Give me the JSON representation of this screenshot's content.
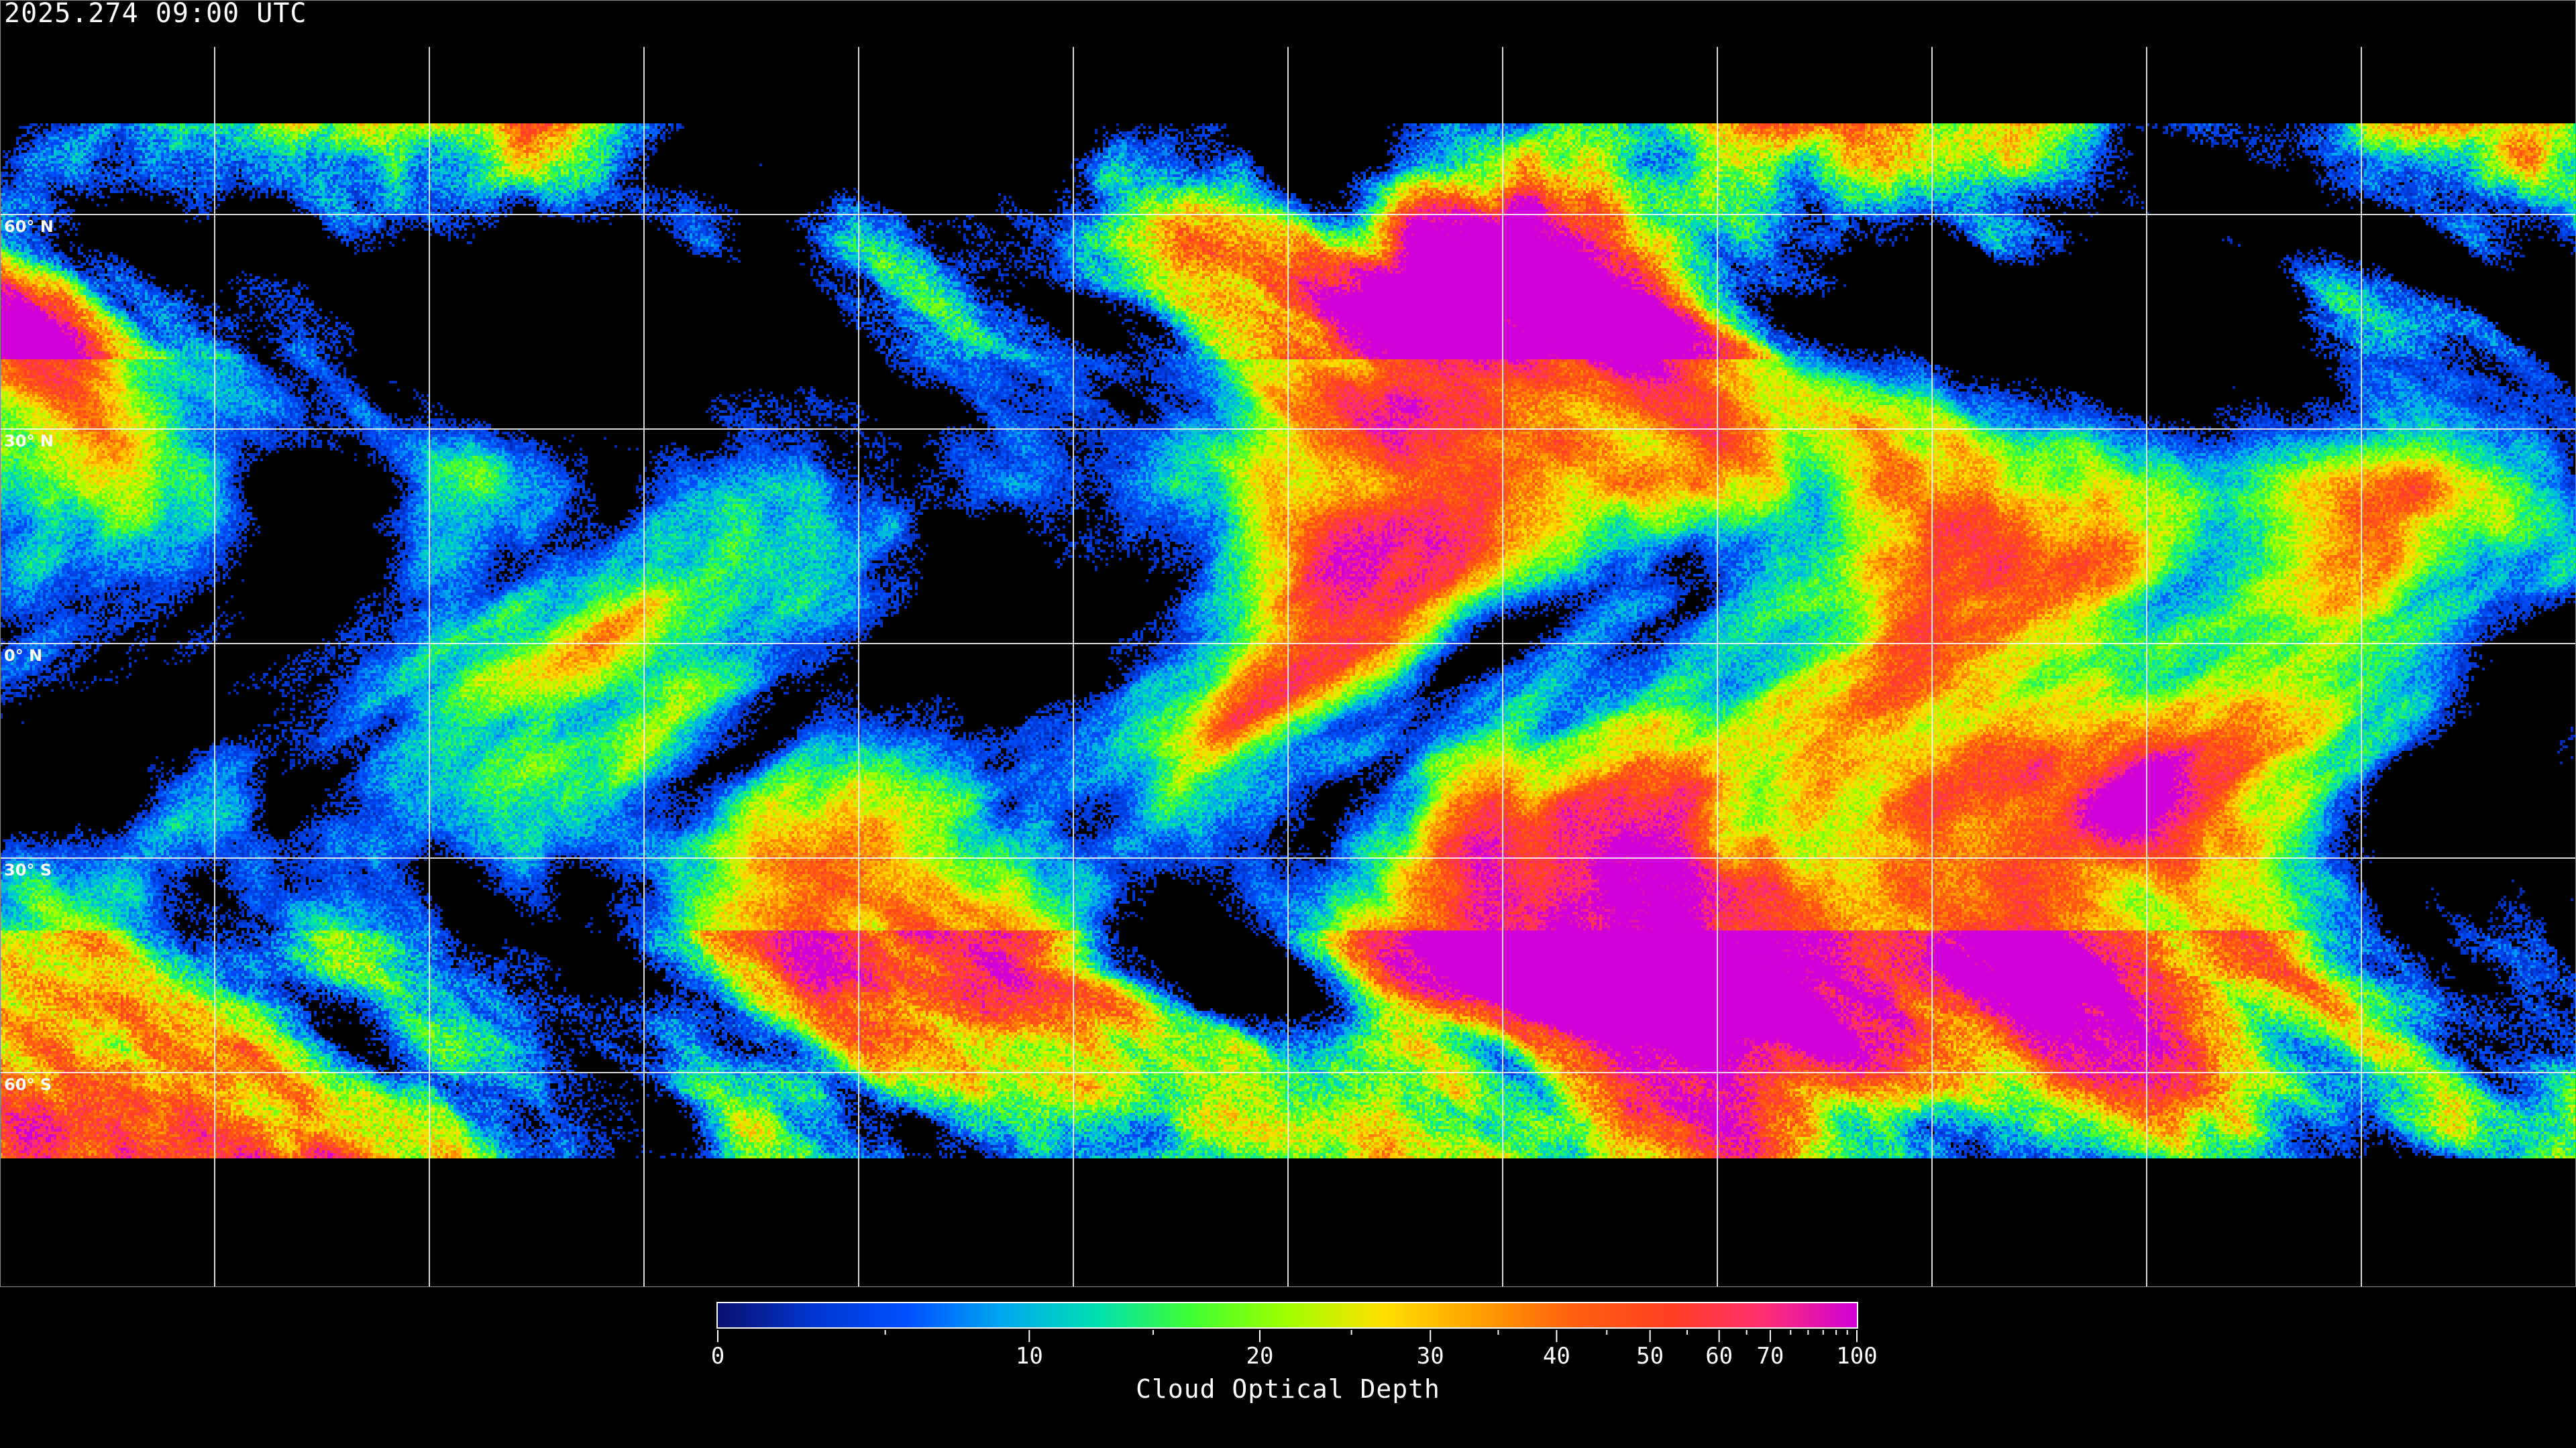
{
  "header": {
    "timestamp": "2025.274 09:00 UTC"
  },
  "map": {
    "projection": "equirectangular",
    "gridlines_every_deg": 30,
    "lat_labels": [
      "60° N",
      "30° N",
      "0° N",
      "30° S",
      "60° S"
    ],
    "lat_values": [
      60,
      30,
      0,
      -30,
      -60
    ],
    "background": "#000000",
    "coastline_color": "#ffffff",
    "grid_color": "#ffffff"
  },
  "chart_data": {
    "type": "heatmap",
    "colorbar": {
      "title": "Cloud Optical Depth",
      "range": [
        0,
        100
      ],
      "tick_labels": [
        "0",
        "10",
        "20",
        "30",
        "40",
        "50",
        "60",
        "70",
        "100"
      ],
      "tick_values": [
        0,
        10,
        20,
        30,
        40,
        50,
        60,
        70,
        100
      ],
      "minor_ticks": [
        5,
        15,
        25,
        35,
        45,
        55,
        65,
        75,
        80,
        85,
        90,
        95
      ],
      "colors": [
        "#0a1070",
        "#0036d0",
        "#0050ff",
        "#00a8f0",
        "#00e0b0",
        "#40ff30",
        "#a0ff00",
        "#ffe000",
        "#ffa000",
        "#ff6010",
        "#ff4020",
        "#ff3070",
        "#d000d8"
      ]
    }
  }
}
